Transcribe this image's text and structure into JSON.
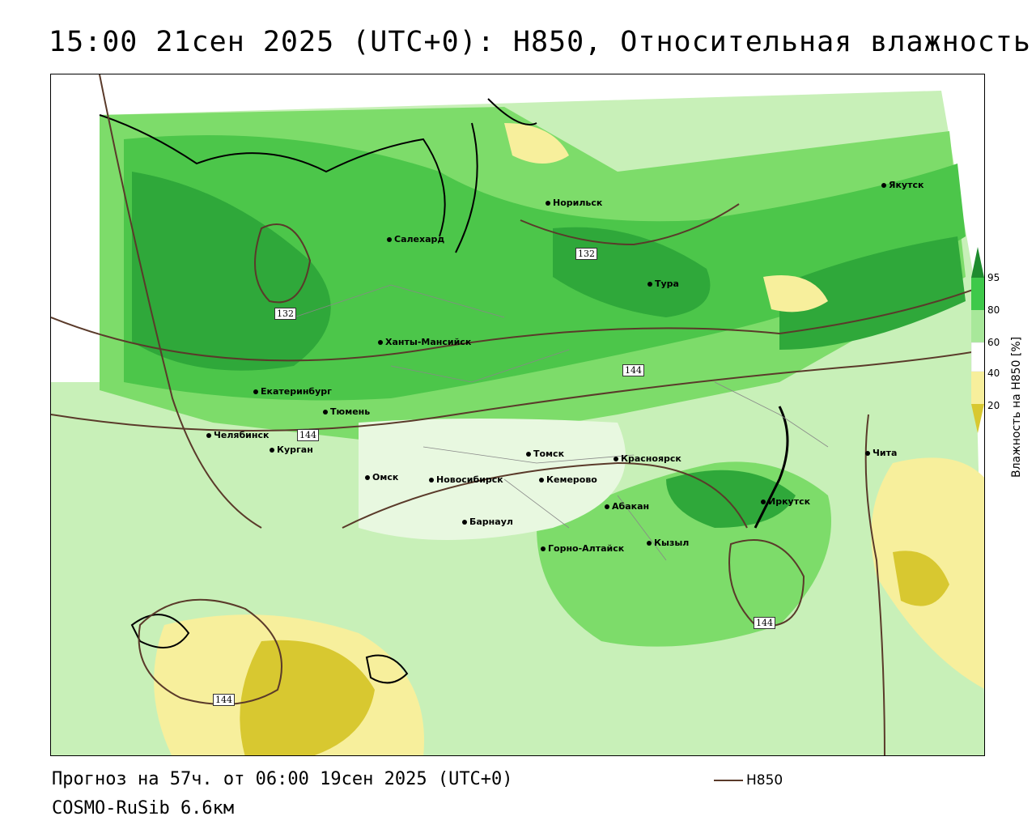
{
  "header": {
    "title": "15:00 21сен 2025 (UTC+0): H850, Относительная влажность"
  },
  "footer": {
    "forecast": "Прогноз на 57ч. от 06:00 19сен 2025 (UTC+0)",
    "model": "COSMO-RuSib 6.6км",
    "legend_label": "H850"
  },
  "colorbar": {
    "title": "Влажность на H850 [%]",
    "ticks": [
      "95",
      "80",
      "60",
      "40",
      "20"
    ],
    "colors": [
      "#1e8b2e",
      "#3ec94a",
      "#a8e89a",
      "#ffffff",
      "#f7ef9c",
      "#d8c830"
    ]
  },
  "cities": [
    {
      "name": "Норильск"
    },
    {
      "name": "Якутск"
    },
    {
      "name": "Салехард"
    },
    {
      "name": "Тура"
    },
    {
      "name": "Ханты-Мансийск"
    },
    {
      "name": "Екатеринбург"
    },
    {
      "name": "Тюмень"
    },
    {
      "name": "Челябинск"
    },
    {
      "name": "Курган"
    },
    {
      "name": "Омск"
    },
    {
      "name": "Томск"
    },
    {
      "name": "Новосибирск"
    },
    {
      "name": "Кемерово"
    },
    {
      "name": "Красноярск"
    },
    {
      "name": "Абакан"
    },
    {
      "name": "Барнаул"
    },
    {
      "name": "Иркутск"
    },
    {
      "name": "Горно-Алтайск"
    },
    {
      "name": "Кызыл"
    },
    {
      "name": "Чита"
    }
  ],
  "contour_labels": [
    "132",
    "132",
    "144",
    "144",
    "144",
    "144"
  ]
}
